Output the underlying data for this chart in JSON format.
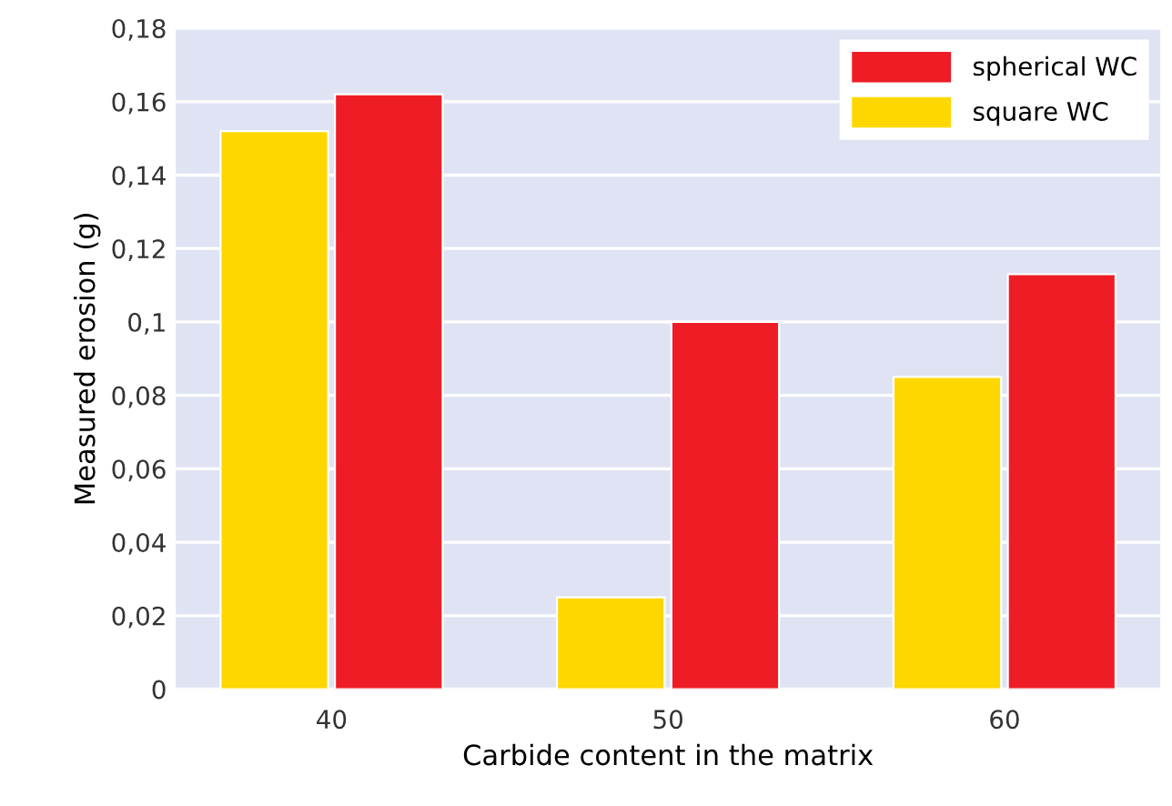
{
  "chart_data": {
    "type": "bar",
    "xlabel": "Carbide content in the matrix",
    "ylabel": "Measured erosion (g)",
    "categories": [
      "40",
      "50",
      "60"
    ],
    "series": [
      {
        "name": "square WC",
        "color": "#ffd700",
        "values": [
          0.152,
          0.025,
          0.085
        ]
      },
      {
        "name": "spherical WC",
        "color": "#ee1c25",
        "values": [
          0.162,
          0.1,
          0.113
        ]
      }
    ],
    "ylim": [
      0,
      0.18
    ],
    "yticks": [
      0,
      {
        "value": 0.02,
        "label": "0,02"
      },
      {
        "value": 0.04,
        "label": "0,04"
      },
      {
        "value": 0.06,
        "label": "0,06"
      },
      {
        "value": 0.08,
        "label": "0,08"
      },
      {
        "value": 0.1,
        "label": "0,1"
      },
      {
        "value": 0.12,
        "label": "0,12"
      },
      {
        "value": 0.14,
        "label": "0,14"
      },
      {
        "value": 0.16,
        "label": "0,16"
      },
      {
        "value": 0.18,
        "label": "0,18"
      }
    ],
    "grid": "y",
    "legend": "top right"
  }
}
